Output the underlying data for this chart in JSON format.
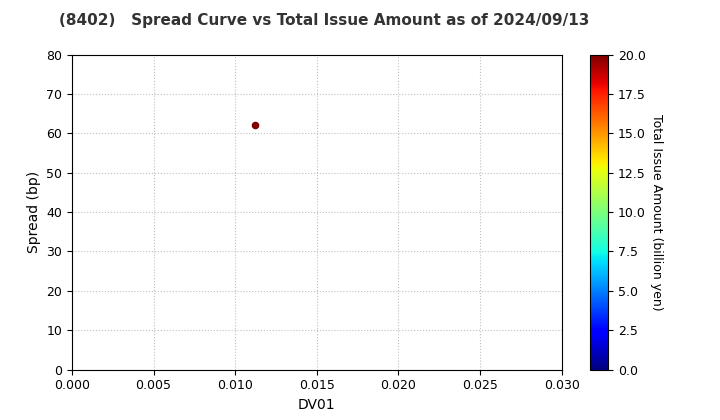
{
  "title": "(8402)   Spread Curve vs Total Issue Amount as of 2024/09/13",
  "xlabel": "DV01",
  "ylabel": "Spread (bp)",
  "colorbar_label": "Total Issue Amount (billion yen)",
  "xlim": [
    0.0,
    0.03
  ],
  "ylim": [
    0,
    80
  ],
  "xticks": [
    0.0,
    0.005,
    0.01,
    0.015,
    0.02,
    0.025,
    0.03
  ],
  "yticks": [
    0,
    10,
    20,
    30,
    40,
    50,
    60,
    70,
    80
  ],
  "colorbar_ticks": [
    0.0,
    2.5,
    5.0,
    7.5,
    10.0,
    12.5,
    15.0,
    17.5,
    20.0
  ],
  "scatter_x": [
    0.0112
  ],
  "scatter_y": [
    62.0
  ],
  "scatter_color_values": [
    20.0
  ],
  "scatter_size": 20,
  "cmap": "jet",
  "vmin": 0.0,
  "vmax": 20.0,
  "grid_color": "#c0c0c0",
  "background_color": "#ffffff",
  "title_fontsize": 11,
  "title_fontweight": "bold",
  "axis_label_fontsize": 10,
  "tick_fontsize": 9,
  "colorbar_label_fontsize": 9
}
